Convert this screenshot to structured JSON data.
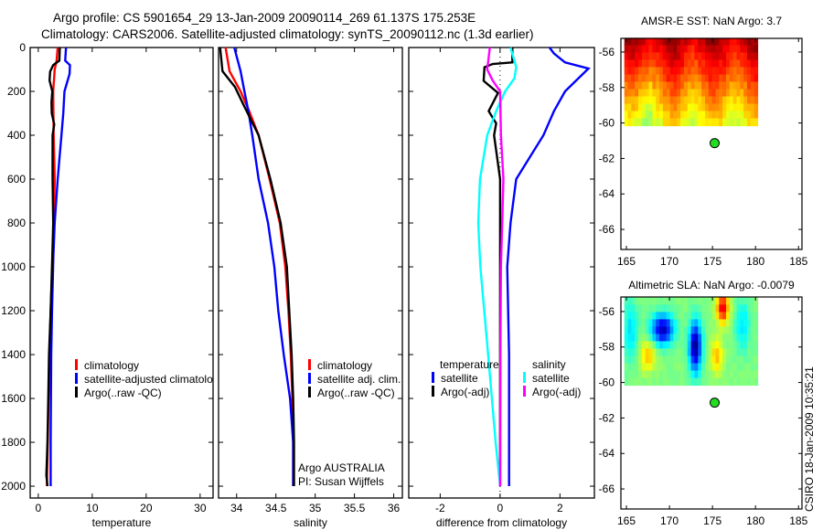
{
  "title": {
    "line1": "Argo profile: CS 5901654_29 13-Jan-2009 20090114_269 61.137S 175.253E",
    "line2": "Climatology: CARS2006. Satellite-adjusted climatology: synTS_20090112.nc (1.3d earlier)"
  },
  "credit": {
    "stamp": "CSIRO 18-Jan-2009 10:35:21",
    "agency": "Argo AUSTRALIA",
    "pi": "PI: Susan Wijffels"
  },
  "colors": {
    "red": "#ff0000",
    "blue": "#0000ff",
    "black": "#000000",
    "cyan": "#00ffff",
    "magenta": "#ff00ff",
    "float_marker": "#22dd22"
  },
  "chart_data": [
    {
      "type": "line",
      "id": "temperature",
      "xlabel": "temperature",
      "ylabel": "",
      "xlim": [
        -1.5,
        32.4
      ],
      "ylim": [
        2054,
        0
      ],
      "xticks": [
        0,
        10,
        20,
        30
      ],
      "yticks": [
        0,
        200,
        400,
        600,
        800,
        1000,
        1200,
        1400,
        1600,
        1800,
        2000
      ],
      "legend": {
        "placement": "lower-left",
        "entries": [
          "climatology",
          "satellite-adjusted climatolo",
          "Argo(..raw -QC)"
        ]
      },
      "series": [
        {
          "name": "climatology",
          "color": "#ff0000",
          "depth": [
            0,
            60,
            100,
            200,
            400,
            600,
            800,
            1000,
            1200,
            1400,
            1600,
            1800,
            2000
          ],
          "values": [
            3.6,
            3.4,
            3.05,
            2.77,
            2.85,
            3.05,
            2.9,
            2.6,
            2.3,
            2.1,
            1.9,
            1.75,
            1.6
          ]
        },
        {
          "name": "satellite-adjusted climatology",
          "color": "#0000ff",
          "depth": [
            0,
            60,
            80,
            120,
            200,
            300,
            400,
            600,
            800,
            950,
            1200,
            1400,
            1600,
            1800,
            2000
          ],
          "values": [
            5.14,
            5.0,
            5.87,
            5.8,
            4.86,
            4.63,
            4.29,
            3.6,
            3.05,
            2.8,
            2.55,
            2.4,
            2.35,
            2.3,
            2.3
          ]
        },
        {
          "name": "Argo(..raw -QC)",
          "color": "#000000",
          "depth": [
            0,
            60,
            80,
            110,
            150,
            200,
            250,
            300,
            350,
            400,
            600,
            800,
            950,
            1200,
            1400,
            1600,
            1800,
            1950,
            2000
          ],
          "values": [
            4.0,
            3.9,
            2.77,
            2.2,
            2.09,
            2.6,
            2.45,
            2.5,
            2.95,
            2.66,
            2.66,
            2.77,
            2.6,
            2.3,
            2.0,
            1.85,
            1.7,
            1.5,
            1.7
          ]
        }
      ]
    },
    {
      "type": "line",
      "id": "salinity",
      "xlabel": "salinity",
      "xlim": [
        33.77,
        36.11
      ],
      "ylim": [
        2054,
        0
      ],
      "xticks": [
        34,
        34.5,
        35,
        35.5,
        36
      ],
      "legend": {
        "placement": "lower-right",
        "entries": [
          "climatology",
          "satellite adj. clim.",
          "Argo(..raw -QC)"
        ]
      },
      "series": [
        {
          "name": "climatology",
          "color": "#ff0000",
          "depth": [
            0,
            108,
            200,
            290,
            400,
            600,
            800,
            1000,
            1200,
            1400,
            1600,
            1800,
            2000
          ],
          "values": [
            33.86,
            33.91,
            34.05,
            34.16,
            34.28,
            34.42,
            34.55,
            34.62,
            34.66,
            34.69,
            34.71,
            34.72,
            34.72
          ]
        },
        {
          "name": "satellite adj. clim.",
          "color": "#0000ff",
          "depth": [
            0,
            108,
            200,
            290,
            400,
            600,
            800,
            1000,
            1200,
            1400,
            1600,
            1800,
            2000
          ],
          "values": [
            33.97,
            34.05,
            34.1,
            34.15,
            34.2,
            34.28,
            34.4,
            34.48,
            34.53,
            34.6,
            34.68,
            34.72,
            34.72
          ]
        },
        {
          "name": "Argo(..raw -QC)",
          "color": "#000000",
          "depth": [
            0,
            108,
            180,
            263,
            400,
            600,
            800,
            1000,
            1200,
            1400,
            1600,
            1800,
            2000
          ],
          "values": [
            33.79,
            33.82,
            33.98,
            34.09,
            34.28,
            34.43,
            34.56,
            34.64,
            34.67,
            34.7,
            34.72,
            34.73,
            34.73
          ]
        }
      ]
    },
    {
      "type": "line",
      "id": "difference",
      "xlabel": "difference from climatology",
      "xlim": [
        -3.05,
        3.15
      ],
      "ylim": [
        2054,
        0
      ],
      "xticks": [
        -2,
        0,
        2
      ],
      "legend": {
        "placement": "lower",
        "temperature_title": "temperature",
        "salinity_title": "salinity",
        "entries": [
          "satellite",
          "Argo(-adj)",
          "satellite",
          "Argo(-adj)"
        ]
      },
      "series": [
        {
          "name": "temperature satellite",
          "color": "#0000ff",
          "depth": [
            0,
            27,
            68,
            96,
            200,
            290,
            400,
            600,
            800,
            1000,
            1400,
            2000
          ],
          "values": [
            1.65,
            1.8,
            2.17,
            2.95,
            2.17,
            1.8,
            1.45,
            0.54,
            0.35,
            0.24,
            0.3,
            0.3
          ]
        },
        {
          "name": "temperature Argo(-adj)",
          "color": "#000000",
          "depth": [
            0,
            68,
            75,
            90,
            152,
            207,
            290,
            346,
            400,
            600,
            1000,
            2000
          ],
          "values": [
            0.41,
            0.41,
            -0.25,
            -0.52,
            -0.55,
            -0.07,
            -0.38,
            -0.13,
            -0.2,
            0.0,
            0.0,
            0.0
          ]
        },
        {
          "name": "salinity satellite",
          "color": "#00ffff",
          "depth": [
            0,
            89,
            140,
            200,
            290,
            400,
            600,
            800,
            1000,
            1400,
            1800,
            2000
          ],
          "values": [
            0.35,
            0.54,
            0.48,
            0.17,
            -0.13,
            -0.43,
            -0.67,
            -0.73,
            -0.66,
            -0.4,
            -0.15,
            0.0
          ]
        },
        {
          "name": "salinity Argo(-adj)",
          "color": "#ff00ff",
          "depth": [
            0,
            100,
            150,
            200,
            400,
            600,
            800,
            1000,
            1400,
            2000
          ],
          "values": [
            -0.34,
            -0.43,
            -0.25,
            0.0,
            0.03,
            0.11,
            0.07,
            0.03,
            0.01,
            0.0
          ]
        }
      ]
    },
    {
      "type": "heatmap",
      "id": "sst_map",
      "title": "AMSR-E SST: NaN Argo: 3.7",
      "xlim": [
        164.36,
        185.4
      ],
      "ylim": [
        -67.13,
        -55.23
      ],
      "xticks": [
        165,
        170,
        175,
        180,
        185
      ],
      "yticks": [
        -56,
        -58,
        -60,
        -62,
        -64,
        -66
      ],
      "float_position": {
        "lon": 175.253,
        "lat": -61.137
      }
    },
    {
      "type": "heatmap",
      "id": "sla_map",
      "title": "Altimetric SLA: NaN Argo: -0.0079",
      "xlim": [
        164.36,
        185.4
      ],
      "ylim": [
        -67.13,
        -55.18
      ],
      "xticks": [
        165,
        170,
        175,
        180,
        185
      ],
      "yticks": [
        -56,
        -58,
        -60,
        -62,
        -64,
        -66
      ],
      "float_position": {
        "lon": 175.253,
        "lat": -61.137
      }
    }
  ]
}
